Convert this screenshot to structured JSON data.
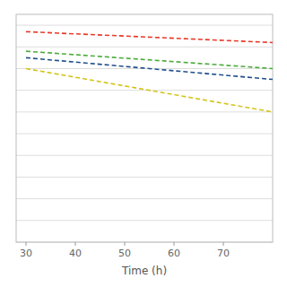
{
  "chart_data": {
    "type": "line",
    "xlabel": "Time (h)",
    "x": [
      30,
      80
    ],
    "series": [
      {
        "color": "#e8392a",
        "line_style": "dashed",
        "values": [
          0.97,
          0.92
        ]
      },
      {
        "color": "#4caa3c",
        "line_style": "dashed",
        "values": [
          0.88,
          0.8
        ]
      },
      {
        "color": "#1f4e8c",
        "line_style": "dashed",
        "values": [
          0.85,
          0.75
        ]
      },
      {
        "color": "#d4c41a",
        "line_style": "dashed",
        "values": [
          0.8,
          0.6
        ]
      }
    ],
    "xlim": [
      28,
      80
    ],
    "ylim": [
      0.0,
      1.05
    ],
    "xticks": [
      30,
      40,
      50,
      60,
      70
    ],
    "yticks": [
      0.0,
      0.1,
      0.2,
      0.3,
      0.4,
      0.5,
      0.6,
      0.7,
      0.8,
      0.9,
      1.0
    ],
    "tick_labels": "x",
    "grid": true
  }
}
